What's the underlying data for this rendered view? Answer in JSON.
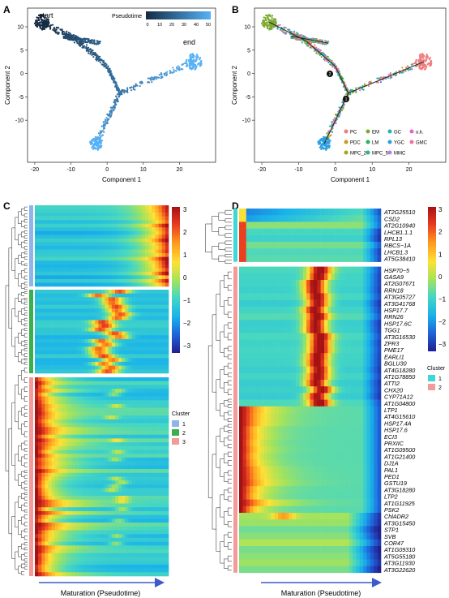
{
  "panels": {
    "A": {
      "letter": "A",
      "xlabel": "Component 1",
      "ylabel": "Component 2",
      "start_label": "start",
      "end_label": "end",
      "legend": {
        "title": "Pseudotime",
        "ticks": [
          "0",
          "10",
          "20",
          "30",
          "40",
          "50"
        ],
        "colors": [
          "#132b43",
          "#56b1f7"
        ]
      },
      "xticks": [
        "-20",
        "-10",
        "0",
        "10",
        "20"
      ],
      "yticks": [
        "10",
        "5",
        "0",
        "-5",
        "-10"
      ]
    },
    "B": {
      "letter": "B",
      "xlabel": "Component 1",
      "ylabel": "Component 2",
      "branch_points": [
        "2",
        "1"
      ],
      "xticks": [
        "-20",
        "-10",
        "0",
        "10",
        "20"
      ],
      "yticks": [
        "10",
        "5",
        "0",
        "-5",
        "-10"
      ],
      "legend": [
        {
          "label": "PC",
          "color": "#f07c7c"
        },
        {
          "label": "EM",
          "color": "#7aab2e"
        },
        {
          "label": "GC",
          "color": "#1fb3b8"
        },
        {
          "label": "u.k.",
          "color": "#e566c8"
        },
        {
          "label": "PDC",
          "color": "#c59b1f"
        },
        {
          "label": "LM",
          "color": "#23b356"
        },
        {
          "label": "YGC",
          "color": "#2b9fe0"
        },
        {
          "label": "GMC",
          "color": "#f070a0"
        },
        {
          "label": "MPC_2",
          "color": "#a9a31a"
        },
        {
          "label": "MPC_5",
          "color": "#22b59a"
        },
        {
          "label": "MMC",
          "color": "#b57de8"
        }
      ]
    },
    "C": {
      "letter": "C",
      "scale_ticks": [
        "3",
        "2",
        "1",
        "0",
        "−1",
        "−2",
        "−3"
      ],
      "cluster_title": "Cluster",
      "clusters": [
        {
          "label": "1",
          "color": "#8fb4e8"
        },
        {
          "label": "2",
          "color": "#3aaf4f"
        },
        {
          "label": "3",
          "color": "#f39a9a"
        }
      ],
      "xlabel": "Maturation (Pseudotime)"
    },
    "D": {
      "letter": "D",
      "scale_ticks": [
        "3",
        "2",
        "1",
        "0",
        "−1",
        "−2",
        "−3"
      ],
      "cluster_title": "Cluster",
      "clusters": [
        {
          "label": "1",
          "color": "#3fd6d6"
        },
        {
          "label": "2",
          "color": "#f39a9a"
        }
      ],
      "xlabel": "Maturation (Pseudotime)",
      "genes": [
        "AT2G25510",
        "CSD2",
        "AT2G10940",
        "LHCB1.1.1",
        "RPL13",
        "RBCS−1A",
        "LHCB1.3",
        "AT5G38410",
        "HSP70−5",
        "GASA9",
        "AT2G07671",
        "RRN18",
        "AT3G05727",
        "AT3G41768",
        "HSP17.7",
        "RRN26",
        "HSP17.6C",
        "TGG1",
        "AT3G16530",
        "ZPR3",
        "PME17",
        "EARLI1",
        "BGLU30",
        "AT4G18280",
        "AT1G78850",
        "ATTI2",
        "CHX20",
        "CYP71A12",
        "AT1G04800",
        "LTP1",
        "AT4G15610",
        "HSP17.4A",
        "HSP17.6",
        "ECI3",
        "PRXIIC",
        "AT1G09500",
        "AT1G21400",
        "DJ1A",
        "PAL1",
        "PED1",
        "GSTU19",
        "AT3G18280",
        "LTP2",
        "AT1G11925",
        "PSK2",
        "ChlADR2",
        "AT3G15450",
        "STP1",
        "SVB",
        "COR47",
        "AT1G09310",
        "AT5G55180",
        "AT3G11930",
        "AT3G22620"
      ]
    }
  },
  "colors": {
    "heat": [
      "#20208f",
      "#1f5fd9",
      "#19b3ea",
      "#46d7c2",
      "#a6e35a",
      "#ffe135",
      "#ff9b1e",
      "#e83a1f",
      "#a41214"
    ],
    "arrow": "#3b5bc8",
    "trajectory": "#222222"
  }
}
